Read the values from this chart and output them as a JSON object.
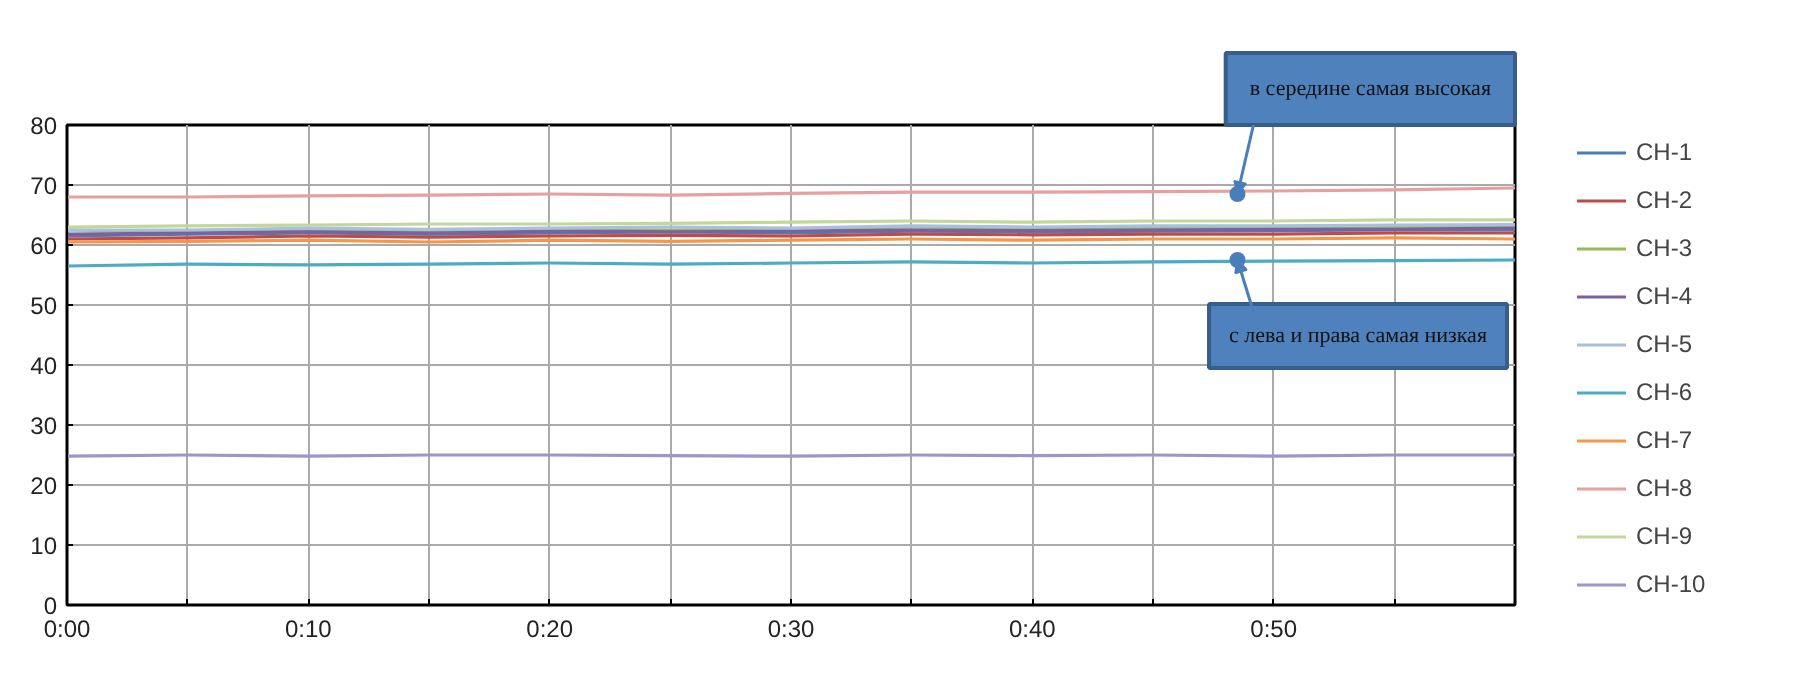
{
  "chart_data": {
    "type": "line",
    "x": [
      0,
      5,
      10,
      15,
      20,
      25,
      30,
      35,
      40,
      45,
      50,
      55,
      60
    ],
    "xlim": [
      0,
      60
    ],
    "xticks": [
      {
        "value": 0,
        "label": "0:00"
      },
      {
        "value": 5,
        "label": null
      },
      {
        "value": 10,
        "label": "0:10"
      },
      {
        "value": 15,
        "label": null
      },
      {
        "value": 20,
        "label": "0:20"
      },
      {
        "value": 25,
        "label": null
      },
      {
        "value": 30,
        "label": "0:30"
      },
      {
        "value": 35,
        "label": null
      },
      {
        "value": 40,
        "label": "0:40"
      },
      {
        "value": 45,
        "label": null
      },
      {
        "value": 50,
        "label": "0:50"
      },
      {
        "value": 55,
        "label": null
      }
    ],
    "ylim": [
      0,
      80
    ],
    "yticks": [
      0,
      10,
      20,
      30,
      40,
      50,
      60,
      70,
      80
    ],
    "grid": true,
    "legend": "right",
    "marker": "none",
    "line_style": "solid",
    "series": [
      {
        "name": "CH-1",
        "color": "#4a7ebb",
        "values": [
          61.5,
          61.8,
          62,
          61.8,
          62,
          62.2,
          62,
          62.3,
          62.2,
          62.3,
          62.4,
          62.5,
          62.5
        ]
      },
      {
        "name": "CH-2",
        "color": "#be4b48",
        "values": [
          61,
          61.2,
          61.5,
          61.3,
          61.5,
          61.6,
          61.5,
          61.8,
          61.7,
          61.8,
          61.8,
          62,
          62
        ]
      },
      {
        "name": "CH-3",
        "color": "#98b954",
        "values": [
          62.5,
          62.2,
          62.3,
          62.4,
          62.5,
          62.5,
          62.6,
          63,
          62.8,
          62.8,
          63,
          63,
          63
        ]
      },
      {
        "name": "CH-4",
        "color": "#7d60a0",
        "values": [
          61.8,
          62,
          62.2,
          62,
          62.3,
          62.2,
          62.3,
          62.5,
          62.4,
          62.5,
          62.6,
          62.6,
          62.8
        ]
      },
      {
        "name": "CH-5",
        "color": "#a7c0de",
        "values": [
          62.5,
          62.5,
          62.8,
          62.6,
          62.8,
          63,
          62.8,
          63.2,
          63,
          63.2,
          63.2,
          63.3,
          63.4
        ]
      },
      {
        "name": "CH-6",
        "color": "#4bacc6",
        "values": [
          56.5,
          56.8,
          56.7,
          56.8,
          57,
          56.8,
          57,
          57.2,
          57,
          57.2,
          57.3,
          57.4,
          57.5
        ]
      },
      {
        "name": "CH-7",
        "color": "#f79646",
        "values": [
          60.5,
          60.6,
          60.8,
          60.5,
          60.8,
          60.6,
          60.8,
          61,
          60.8,
          61,
          61,
          61.2,
          61
        ]
      },
      {
        "name": "CH-8",
        "color": "#e6a0a0",
        "values": [
          68,
          68,
          68.2,
          68.3,
          68.5,
          68.3,
          68.6,
          68.8,
          68.8,
          68.9,
          69,
          69.2,
          69.5
        ]
      },
      {
        "name": "CH-9",
        "color": "#c3d69b",
        "values": [
          63,
          63.2,
          63.3,
          63.5,
          63.5,
          63.6,
          63.8,
          64,
          63.8,
          64,
          64,
          64.2,
          64.2
        ]
      },
      {
        "name": "CH-10",
        "color": "#a094c8",
        "values": [
          24.8,
          25,
          24.8,
          25,
          25,
          24.9,
          24.8,
          25,
          24.9,
          25,
          24.8,
          25,
          25
        ]
      }
    ],
    "annotations": [
      {
        "text": "в середине самая высокая",
        "x": 48.5,
        "y": 68.5
      },
      {
        "text": "с лева и права самая низкая",
        "x": 48.5,
        "y": 57.5
      }
    ]
  }
}
